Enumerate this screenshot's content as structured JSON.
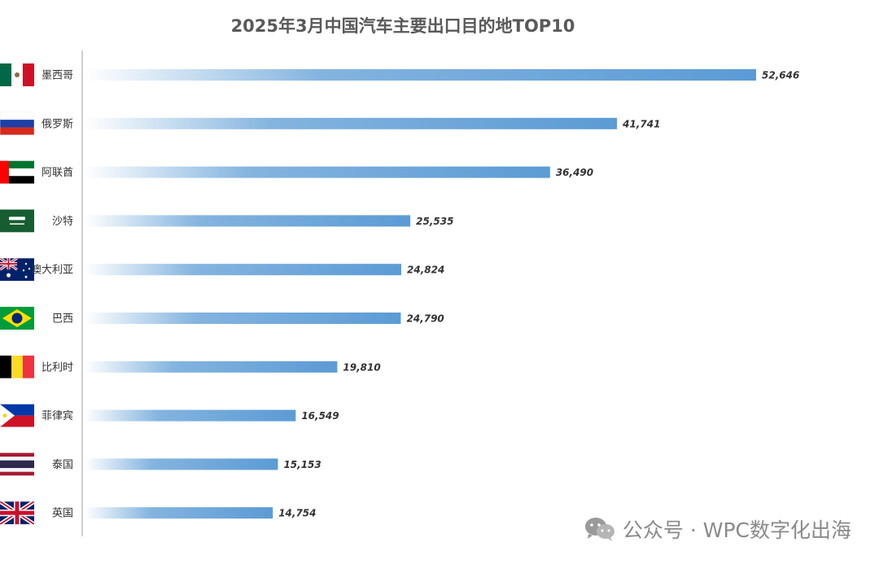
{
  "chart_data": {
    "type": "bar",
    "orientation": "horizontal",
    "title": "2025年3月中国汽车主要出口目的地TOP10",
    "categories": [
      "墨西哥",
      "俄罗斯",
      "阿联酋",
      "沙特",
      "澳大利亚",
      "巴西",
      "比利时",
      "菲律宾",
      "泰国",
      "英国"
    ],
    "values": [
      52646,
      41741,
      36490,
      25535,
      24824,
      24790,
      19810,
      16549,
      15153,
      14754
    ],
    "value_labels": [
      "52,646",
      "41,741",
      "36,490",
      "25,535",
      "24,824",
      "24,790",
      "19,810",
      "16,549",
      "15,153",
      "14,754"
    ],
    "xlim": [
      0,
      52646
    ],
    "xlabel": "",
    "ylabel": "",
    "grid": false,
    "legend": "none",
    "bar_color": "#5b9bd5",
    "flags": [
      "mexico-flag",
      "russia-flag",
      "uae-flag",
      "saudi-flag",
      "australia-flag",
      "brazil-flag",
      "belgium-flag",
      "philippines-flag",
      "thailand-flag",
      "uk-flag"
    ]
  },
  "watermark": {
    "icon": "wechat-icon",
    "text": "公众号 · WPC数字化出海"
  }
}
